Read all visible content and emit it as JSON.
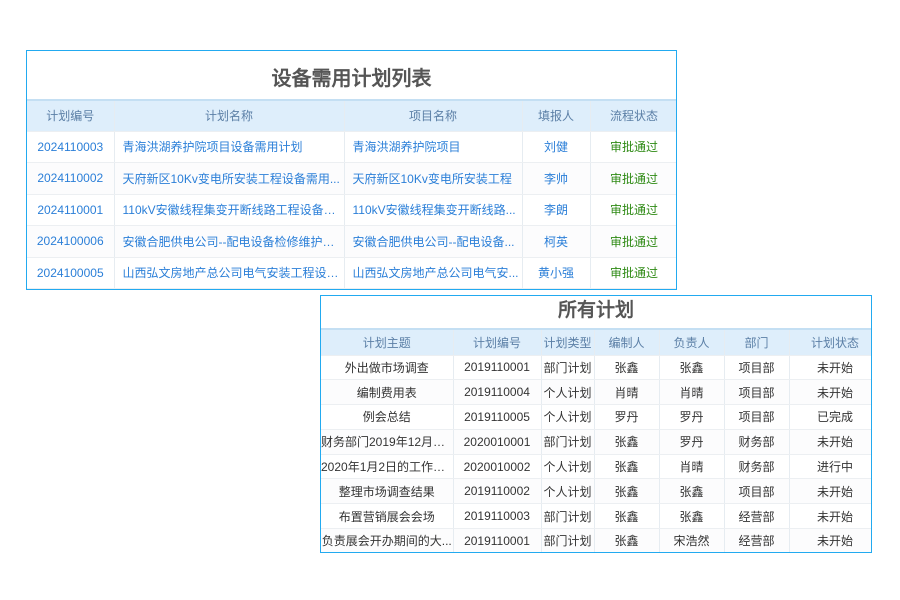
{
  "panel1": {
    "title": "设备需用计划列表",
    "headers": [
      "计划编号",
      "计划名称",
      "项目名称",
      "填报人",
      "流程状态"
    ],
    "rows": [
      [
        "2024110003",
        "青海洪湖养护院项目设备需用计划",
        "青海洪湖养护院项目",
        "刘健",
        "审批通过"
      ],
      [
        "2024110002",
        "天府新区10Kv变电所安装工程设备需用...",
        "天府新区10Kv变电所安装工程",
        "李帅",
        "审批通过"
      ],
      [
        "2024110001",
        "110kV安徽线程集变开断线路工程设备需...",
        "110kV安徽线程集变开断线路...",
        "李朗",
        "审批通过"
      ],
      [
        "2024100006",
        "安徽合肥供电公司--配电设备检修维护和...",
        "安徽合肥供电公司--配电设备...",
        "柯英",
        "审批通过"
      ],
      [
        "2024100005",
        "山西弘文房地产总公司电气安装工程设备...",
        "山西弘文房地产总公司电气安...",
        "黄小强",
        "审批通过"
      ]
    ],
    "colors": {
      "link": "#2b7fd8",
      "status": "#2e8a14",
      "border": "#22aaf0",
      "header_bg": "#deeefb"
    }
  },
  "panel2": {
    "title": "所有计划",
    "headers": [
      "计划主题",
      "计划编号",
      "计划类型",
      "编制人",
      "负责人",
      "部门",
      "计划状态"
    ],
    "rows": [
      [
        "外出做市场调查",
        "2019110001",
        "部门计划",
        "张鑫",
        "张鑫",
        "项目部",
        "未开始"
      ],
      [
        "编制费用表",
        "2019110004",
        "个人计划",
        "肖晴",
        "肖晴",
        "项目部",
        "未开始"
      ],
      [
        "例会总结",
        "2019110005",
        "个人计划",
        "罗丹",
        "罗丹",
        "项目部",
        "已完成"
      ],
      [
        "财务部门2019年12月的...",
        "2020010001",
        "部门计划",
        "张鑫",
        "罗丹",
        "财务部",
        "未开始"
      ],
      [
        "2020年1月2日的工作日...",
        "2020010002",
        "个人计划",
        "张鑫",
        "肖晴",
        "财务部",
        "进行中"
      ],
      [
        "整理市场调查结果",
        "2019110002",
        "个人计划",
        "张鑫",
        "张鑫",
        "项目部",
        "未开始"
      ],
      [
        "布置营销展会会场",
        "2019110003",
        "部门计划",
        "张鑫",
        "张鑫",
        "经营部",
        "未开始"
      ],
      [
        "负责展会开办期间的大...",
        "2019110001",
        "部门计划",
        "张鑫",
        "宋浩然",
        "经营部",
        "未开始"
      ]
    ]
  }
}
